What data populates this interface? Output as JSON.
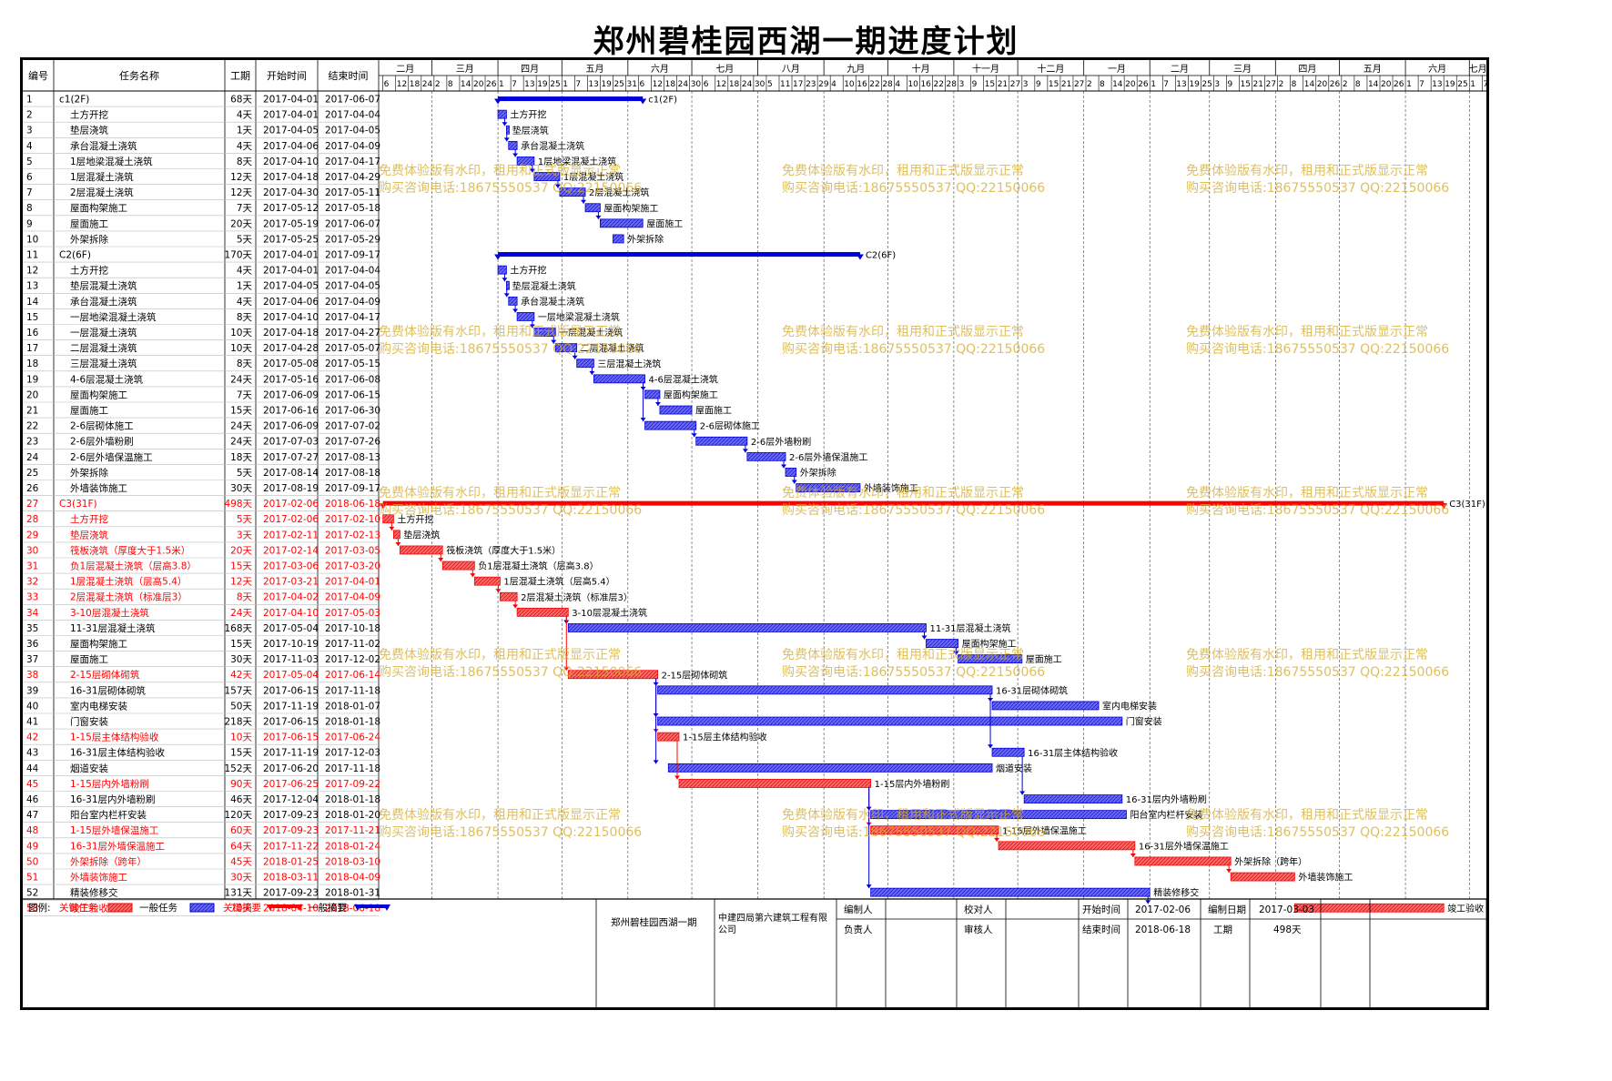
{
  "title": "郑州碧桂园西湖一期进度计划",
  "columns": [
    "编号",
    "任务名称",
    "工期",
    "开始时间",
    "结束时间"
  ],
  "months": [
    "二月",
    "三月",
    "四月",
    "五月",
    "六月",
    "七月",
    "八月",
    "九月",
    "十月",
    "十一月",
    "十二月",
    "一月",
    "二月",
    "三月",
    "四月",
    "五月",
    "六月",
    "七月"
  ],
  "day_ticks": [
    "6",
    "12",
    "18",
    "24",
    "2",
    "8",
    "14",
    "20",
    "26",
    "1",
    "7",
    "13",
    "19",
    "25",
    "1",
    "7",
    "13",
    "19",
    "25",
    "31",
    "6",
    "12",
    "18",
    "24",
    "30",
    "6",
    "12",
    "18",
    "24",
    "30",
    "5",
    "11",
    "17",
    "23",
    "29",
    "4",
    "10",
    "16",
    "22",
    "28",
    "4",
    "10",
    "16",
    "22",
    "28",
    "3",
    "9",
    "15",
    "21",
    "27",
    "3",
    "9",
    "15",
    "21",
    "27",
    "2",
    "8",
    "14",
    "20",
    "26",
    "1",
    "7",
    "13",
    "19",
    "25",
    "3",
    "9",
    "15",
    "21",
    "27",
    "2",
    "8",
    "14",
    "20",
    "26",
    "2",
    "8",
    "14",
    "20",
    "26",
    "1",
    "7",
    "13",
    "19",
    "25",
    "1",
    "7"
  ],
  "timeline_start": "2017-02-04",
  "timeline_end": "2018-07-09",
  "tasks": [
    {
      "id": "1",
      "name": "c1(2F)",
      "dur": "68天",
      "start": "2017-04-01",
      "end": "2017-06-07",
      "kind": "summary-normal",
      "indent": 0,
      "label": "c1(2F)"
    },
    {
      "id": "2",
      "name": "土方开挖",
      "dur": "4天",
      "start": "2017-04-01",
      "end": "2017-04-04",
      "kind": "normal",
      "indent": 1,
      "label": "土方开挖"
    },
    {
      "id": "3",
      "name": "垫层浇筑",
      "dur": "1天",
      "start": "2017-04-05",
      "end": "2017-04-05",
      "kind": "normal",
      "indent": 1,
      "label": "垫层浇筑"
    },
    {
      "id": "4",
      "name": "承台混凝土浇筑",
      "dur": "4天",
      "start": "2017-04-06",
      "end": "2017-04-09",
      "kind": "normal",
      "indent": 1,
      "label": "承台混凝土浇筑"
    },
    {
      "id": "5",
      "name": "1层地梁混凝土浇筑",
      "dur": "8天",
      "start": "2017-04-10",
      "end": "2017-04-17",
      "kind": "normal",
      "indent": 1,
      "label": "1层地梁混凝土浇筑"
    },
    {
      "id": "6",
      "name": "1层混凝土浇筑",
      "dur": "12天",
      "start": "2017-04-18",
      "end": "2017-04-29",
      "kind": "normal",
      "indent": 1,
      "label": "1层混凝土浇筑"
    },
    {
      "id": "7",
      "name": "2层混凝土浇筑",
      "dur": "12天",
      "start": "2017-04-30",
      "end": "2017-05-11",
      "kind": "normal",
      "indent": 1,
      "label": "2层混凝土浇筑"
    },
    {
      "id": "8",
      "name": "屋面构架施工",
      "dur": "7天",
      "start": "2017-05-12",
      "end": "2017-05-18",
      "kind": "normal",
      "indent": 1,
      "label": "屋面构架施工"
    },
    {
      "id": "9",
      "name": "屋面施工",
      "dur": "20天",
      "start": "2017-05-19",
      "end": "2017-06-07",
      "kind": "normal",
      "indent": 1,
      "label": "屋面施工"
    },
    {
      "id": "10",
      "name": "外架拆除",
      "dur": "5天",
      "start": "2017-05-25",
      "end": "2017-05-29",
      "kind": "normal",
      "indent": 1,
      "label": "外架拆除"
    },
    {
      "id": "11",
      "name": "C2(6F)",
      "dur": "170天",
      "start": "2017-04-01",
      "end": "2017-09-17",
      "kind": "summary-normal",
      "indent": 0,
      "label": "C2(6F)"
    },
    {
      "id": "12",
      "name": "土方开挖",
      "dur": "4天",
      "start": "2017-04-01",
      "end": "2017-04-04",
      "kind": "normal",
      "indent": 1,
      "label": "土方开挖"
    },
    {
      "id": "13",
      "name": "垫层混凝土浇筑",
      "dur": "1天",
      "start": "2017-04-05",
      "end": "2017-04-05",
      "kind": "normal",
      "indent": 1,
      "label": "垫层混凝土浇筑"
    },
    {
      "id": "14",
      "name": "承台混凝土浇筑",
      "dur": "4天",
      "start": "2017-04-06",
      "end": "2017-04-09",
      "kind": "normal",
      "indent": 1,
      "label": "承台混凝土浇筑"
    },
    {
      "id": "15",
      "name": "一层地梁混凝土浇筑",
      "dur": "8天",
      "start": "2017-04-10",
      "end": "2017-04-17",
      "kind": "normal",
      "indent": 1,
      "label": "一层地梁混凝土浇筑"
    },
    {
      "id": "16",
      "name": "一层混凝土浇筑",
      "dur": "10天",
      "start": "2017-04-18",
      "end": "2017-04-27",
      "kind": "normal",
      "indent": 1,
      "label": "一层混凝土浇筑"
    },
    {
      "id": "17",
      "name": "二层混凝土浇筑",
      "dur": "10天",
      "start": "2017-04-28",
      "end": "2017-05-07",
      "kind": "normal",
      "indent": 1,
      "label": "二层混凝土浇筑"
    },
    {
      "id": "18",
      "name": "三层混凝土浇筑",
      "dur": "8天",
      "start": "2017-05-08",
      "end": "2017-05-15",
      "kind": "normal",
      "indent": 1,
      "label": "三层混凝土浇筑"
    },
    {
      "id": "19",
      "name": "4-6层混凝土浇筑",
      "dur": "24天",
      "start": "2017-05-16",
      "end": "2017-06-08",
      "kind": "normal",
      "indent": 1,
      "label": "4-6层混凝土浇筑"
    },
    {
      "id": "20",
      "name": "屋面构架施工",
      "dur": "7天",
      "start": "2017-06-09",
      "end": "2017-06-15",
      "kind": "normal",
      "indent": 1,
      "label": "屋面构架施工"
    },
    {
      "id": "21",
      "name": "屋面施工",
      "dur": "15天",
      "start": "2017-06-16",
      "end": "2017-06-30",
      "kind": "normal",
      "indent": 1,
      "label": "屋面施工"
    },
    {
      "id": "22",
      "name": "2-6层砌体施工",
      "dur": "24天",
      "start": "2017-06-09",
      "end": "2017-07-02",
      "kind": "normal",
      "indent": 1,
      "label": "2-6层砌体施工"
    },
    {
      "id": "23",
      "name": "2-6层外墙粉刷",
      "dur": "24天",
      "start": "2017-07-03",
      "end": "2017-07-26",
      "kind": "normal",
      "indent": 1,
      "label": "2-6层外墙粉刷"
    },
    {
      "id": "24",
      "name": "2-6层外墙保温施工",
      "dur": "18天",
      "start": "2017-07-27",
      "end": "2017-08-13",
      "kind": "normal",
      "indent": 1,
      "label": "2-6层外墙保温施工"
    },
    {
      "id": "25",
      "name": "外架拆除",
      "dur": "5天",
      "start": "2017-08-14",
      "end": "2017-08-18",
      "kind": "normal",
      "indent": 1,
      "label": "外架拆除"
    },
    {
      "id": "26",
      "name": "外墙装饰施工",
      "dur": "30天",
      "start": "2017-08-19",
      "end": "2017-09-17",
      "kind": "normal",
      "indent": 1,
      "label": "外墙装饰施工"
    },
    {
      "id": "27",
      "name": "C3(31F)",
      "dur": "498天",
      "start": "2017-02-06",
      "end": "2018-06-18",
      "kind": "summary-critical",
      "indent": 0,
      "label": "C3(31F)"
    },
    {
      "id": "28",
      "name": "土方开挖",
      "dur": "5天",
      "start": "2017-02-06",
      "end": "2017-02-10",
      "kind": "critical",
      "indent": 1,
      "label": "土方开挖"
    },
    {
      "id": "29",
      "name": "垫层浇筑",
      "dur": "3天",
      "start": "2017-02-11",
      "end": "2017-02-13",
      "kind": "critical",
      "indent": 1,
      "label": "垫层浇筑"
    },
    {
      "id": "30",
      "name": "筏板浇筑（厚度大于1.5米）",
      "dur": "20天",
      "start": "2017-02-14",
      "end": "2017-03-05",
      "kind": "critical",
      "indent": 1,
      "label": "筏板浇筑（厚度大于1.5米）"
    },
    {
      "id": "31",
      "name": "负1层混凝土浇筑（层高3.8）",
      "dur": "15天",
      "start": "2017-03-06",
      "end": "2017-03-20",
      "kind": "critical",
      "indent": 1,
      "label": "负1层混凝土浇筑（层高3.8）"
    },
    {
      "id": "32",
      "name": "1层混凝土浇筑（层高5.4）",
      "dur": "12天",
      "start": "2017-03-21",
      "end": "2017-04-01",
      "kind": "critical",
      "indent": 1,
      "label": "1层混凝土浇筑（层高5.4）"
    },
    {
      "id": "33",
      "name": "2层混凝土浇筑（标准层3）",
      "dur": "8天",
      "start": "2017-04-02",
      "end": "2017-04-09",
      "kind": "critical",
      "indent": 1,
      "label": "2层混凝土浇筑（标准层3）"
    },
    {
      "id": "34",
      "name": "3-10层混凝土浇筑",
      "dur": "24天",
      "start": "2017-04-10",
      "end": "2017-05-03",
      "kind": "critical",
      "indent": 1,
      "label": "3-10层混凝土浇筑"
    },
    {
      "id": "35",
      "name": "11-31层混凝土浇筑",
      "dur": "168天",
      "start": "2017-05-04",
      "end": "2017-10-18",
      "kind": "normal",
      "indent": 1,
      "label": "11-31层混凝土浇筑"
    },
    {
      "id": "36",
      "name": "屋面构架施工",
      "dur": "15天",
      "start": "2017-10-19",
      "end": "2017-11-02",
      "kind": "normal",
      "indent": 1,
      "label": "屋面构架施工"
    },
    {
      "id": "37",
      "name": "屋面施工",
      "dur": "30天",
      "start": "2017-11-03",
      "end": "2017-12-02",
      "kind": "normal",
      "indent": 1,
      "label": "屋面施工"
    },
    {
      "id": "38",
      "name": "2-15层砌体砌筑",
      "dur": "42天",
      "start": "2017-05-04",
      "end": "2017-06-14",
      "kind": "critical",
      "indent": 1,
      "label": "2-15层砌体砌筑"
    },
    {
      "id": "39",
      "name": "16-31层砌体砌筑",
      "dur": "157天",
      "start": "2017-06-15",
      "end": "2017-11-18",
      "kind": "normal",
      "indent": 1,
      "label": "16-31层砌体砌筑"
    },
    {
      "id": "40",
      "name": "室内电梯安装",
      "dur": "50天",
      "start": "2017-11-19",
      "end": "2018-01-07",
      "kind": "normal",
      "indent": 1,
      "label": "室内电梯安装"
    },
    {
      "id": "41",
      "name": "门窗安装",
      "dur": "218天",
      "start": "2017-06-15",
      "end": "2018-01-18",
      "kind": "normal",
      "indent": 1,
      "label": "门窗安装"
    },
    {
      "id": "42",
      "name": "1-15层主体结构验收",
      "dur": "10天",
      "start": "2017-06-15",
      "end": "2017-06-24",
      "kind": "critical",
      "indent": 1,
      "label": "1-15层主体结构验收"
    },
    {
      "id": "43",
      "name": "16-31层主体结构验收",
      "dur": "15天",
      "start": "2017-11-19",
      "end": "2017-12-03",
      "kind": "normal",
      "indent": 1,
      "label": "16-31层主体结构验收"
    },
    {
      "id": "44",
      "name": "烟道安装",
      "dur": "152天",
      "start": "2017-06-20",
      "end": "2017-11-18",
      "kind": "normal",
      "indent": 1,
      "label": "烟道安装"
    },
    {
      "id": "45",
      "name": "1-15层内外墙粉刷",
      "dur": "90天",
      "start": "2017-06-25",
      "end": "2017-09-22",
      "kind": "critical",
      "indent": 1,
      "label": "1-15层内外墙粉刷"
    },
    {
      "id": "46",
      "name": "16-31层内外墙粉刷",
      "dur": "46天",
      "start": "2017-12-04",
      "end": "2018-01-18",
      "kind": "normal",
      "indent": 1,
      "label": "16-31层内外墙粉刷"
    },
    {
      "id": "47",
      "name": "阳台室内栏杆安装",
      "dur": "120天",
      "start": "2017-09-23",
      "end": "2018-01-20",
      "kind": "normal",
      "indent": 1,
      "label": "阳台室内栏杆安装"
    },
    {
      "id": "48",
      "name": "1-15层外墙保温施工",
      "dur": "60天",
      "start": "2017-09-23",
      "end": "2017-11-21",
      "kind": "critical",
      "indent": 1,
      "label": "1-15层外墙保温施工"
    },
    {
      "id": "49",
      "name": "16-31层外墙保温施工",
      "dur": "64天",
      "start": "2017-11-22",
      "end": "2018-01-24",
      "kind": "critical",
      "indent": 1,
      "label": "16-31层外墙保温施工"
    },
    {
      "id": "50",
      "name": "外架拆除（跨年）",
      "dur": "45天",
      "start": "2018-01-25",
      "end": "2018-03-10",
      "kind": "critical",
      "indent": 1,
      "label": "外架拆除（跨年）"
    },
    {
      "id": "51",
      "name": "外墙装饰施工",
      "dur": "30天",
      "start": "2018-03-11",
      "end": "2018-04-09",
      "kind": "critical",
      "indent": 1,
      "label": "外墙装饰施工"
    },
    {
      "id": "52",
      "name": "精装修移交",
      "dur": "131天",
      "start": "2017-09-23",
      "end": "2018-01-31",
      "kind": "normal",
      "indent": 1,
      "label": "精装修移交"
    },
    {
      "id": "53",
      "name": "竣工验收",
      "dur": "70天",
      "start": "2018-04-10",
      "end": "2018-06-18",
      "kind": "critical",
      "indent": 1,
      "label": "竣工验收"
    }
  ],
  "watermark": {
    "line1": "免费体验版有水印，租用和正式版显示正常",
    "line2": "购买咨询电话:18675550537 QQ:22150066"
  },
  "legend": {
    "label": "图例:",
    "critical_task": "关键任务",
    "normal_task": "一般任务",
    "critical_summary": "关键摘要",
    "normal_summary": "一般摘要"
  },
  "footer": {
    "project": "郑州碧桂园西湖一期",
    "company": "中建四局第六建筑工程有限公司",
    "compiler_label": "编制人",
    "compiler": "",
    "reviewer_label": "校对人",
    "reviewer": "",
    "owner_label": "负责人",
    "owner": "",
    "auditor_label": "审核人",
    "auditor": "",
    "start_label": "开始时间",
    "start": "2017-02-06",
    "end_label": "结束时间",
    "end": "2018-06-18",
    "date_label": "编制日期",
    "date": "2017-03-03",
    "dur_label": "工期",
    "dur": "498天"
  },
  "colors": {
    "critical": "#ff0000",
    "critical_fill": "#f07070",
    "normal": "#0000dd",
    "normal_fill": "#6a6af0",
    "watermark": "#d4aa2a"
  }
}
